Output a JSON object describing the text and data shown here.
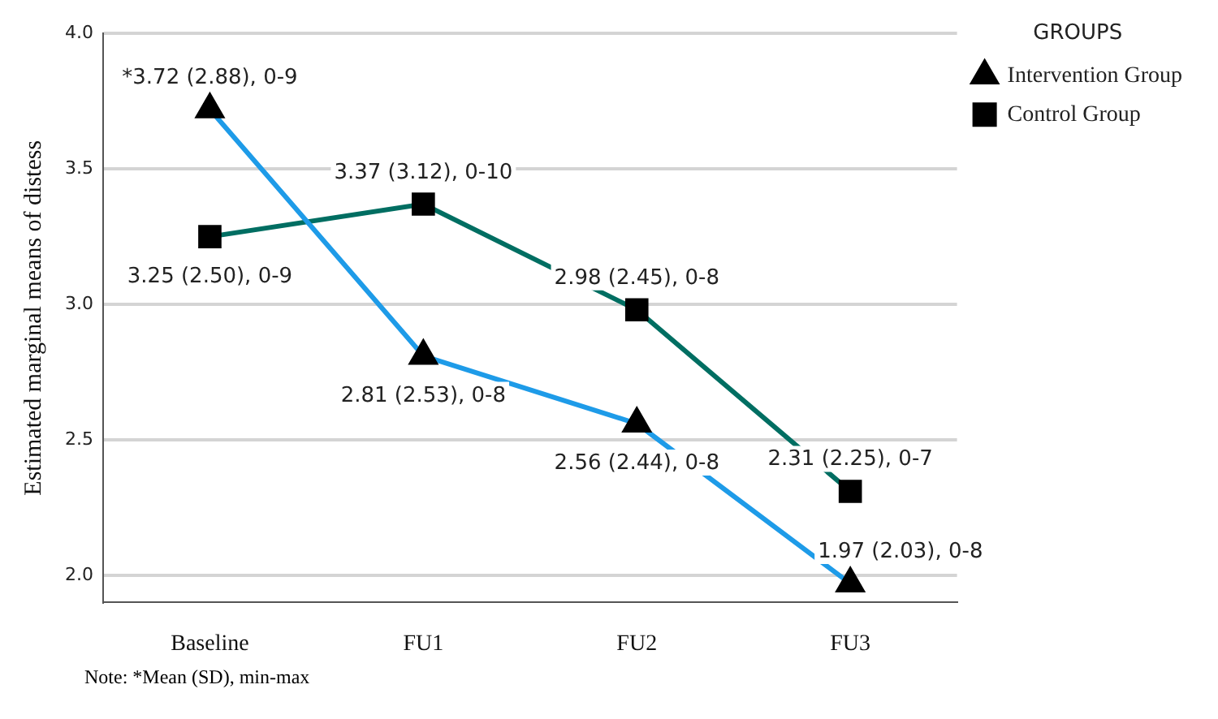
{
  "chart_data": {
    "type": "line",
    "ylabel": "Estimated marginal means of distess",
    "legend_title": "GROUPS",
    "legend": "top right",
    "categories": [
      "Baseline",
      "FU1",
      "FU2",
      "FU3"
    ],
    "series": [
      {
        "name": "Intervention Group",
        "color": "#1e9be8",
        "marker": "triangle",
        "values": [
          3.72,
          2.81,
          2.56,
          1.97
        ],
        "value_labels": [
          "*3.72 (2.88), 0-9",
          "2.81 (2.53), 0-8",
          "2.56 (2.44), 0-8",
          "1.97 (2.03), 0-8"
        ]
      },
      {
        "name": "Control Group",
        "color": "#006e62",
        "marker": "square",
        "values": [
          3.25,
          3.37,
          2.98,
          2.31
        ],
        "value_labels": [
          "3.25 (2.50), 0-9",
          "3.37 (3.12), 0-10",
          "2.98 (2.45), 0-8",
          "2.31 (2.25), 0-7"
        ]
      }
    ],
    "ylim": [
      1.9,
      4.0
    ],
    "yticks": [
      {
        "value": 2.0,
        "label": "2.0"
      },
      {
        "value": 2.5,
        "label": "2.5"
      },
      {
        "value": 3.0,
        "label": "3.0"
      },
      {
        "value": 3.5,
        "label": "3.5"
      },
      {
        "value": 4.0,
        "label": "4.0"
      }
    ],
    "grid": "y",
    "annotations": [
      "Note: *Mean (SD), min-max"
    ]
  }
}
